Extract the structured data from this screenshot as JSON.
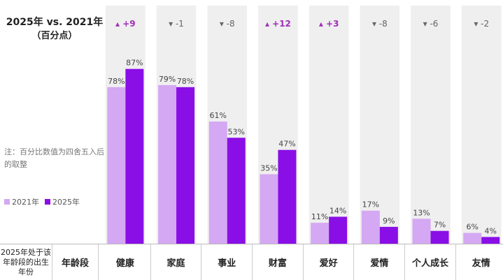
{
  "header": {
    "title_line1": "2025年 vs. 2021年",
    "title_line2": "（百分点）"
  },
  "note": "注：百分比数值为四舍五入后的取整",
  "legend": [
    {
      "label": "2021年",
      "color": "#d4a8f2"
    },
    {
      "label": "2025年",
      "color": "#8a0ee6"
    }
  ],
  "table_header": {
    "col1": "2025年处于该年龄段的出生年份",
    "col2": "年龄段"
  },
  "colors": {
    "bar_2021": "#d4a8f2",
    "bar_2025": "#8a0ee6",
    "column_bg": "#efefef",
    "delta_positive": "#a12eb8",
    "delta_negative": "#666666"
  },
  "chart_data": {
    "type": "bar",
    "categories": [
      "健康",
      "家庭",
      "事业",
      "财富",
      "爱好",
      "爱情",
      "个人成长",
      "友情"
    ],
    "series": [
      {
        "name": "2021年",
        "values": [
          78,
          79,
          61,
          35,
          11,
          17,
          13,
          6
        ]
      },
      {
        "name": "2025年",
        "values": [
          87,
          78,
          53,
          47,
          14,
          9,
          7,
          4
        ]
      }
    ],
    "value_labels_2021": [
      "78%",
      "79%",
      "61%",
      "35%",
      "11%",
      "17%",
      "13%",
      "6%"
    ],
    "value_labels_2025": [
      "87%",
      "78%",
      "53%",
      "47%",
      "14%",
      "9%",
      "7%",
      "4%"
    ],
    "changes": [
      "+9",
      "-1",
      "-8",
      "+12",
      "+3",
      "-8",
      "-6",
      "-2"
    ],
    "ylim": [
      0,
      100
    ],
    "grid": false,
    "legend_position": "left"
  }
}
